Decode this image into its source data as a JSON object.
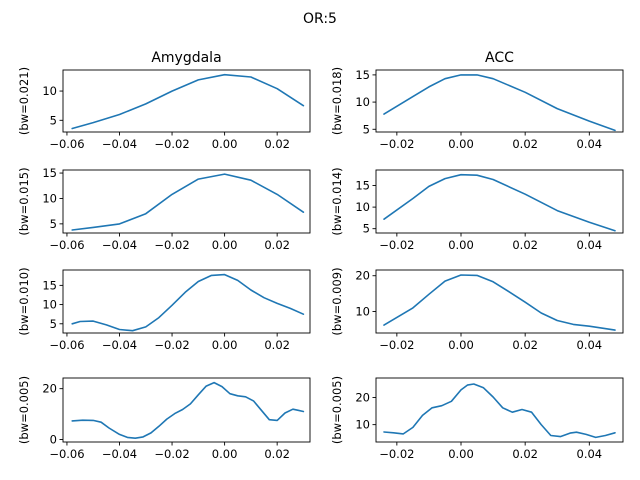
{
  "figure": {
    "suptitle": "OR:5"
  },
  "columns": [
    "Amygdala",
    "ACC"
  ],
  "colors": {
    "line": "#1f77b4"
  },
  "chart_data": [
    {
      "type": "line",
      "row": 0,
      "col": 0,
      "ylabel": "(bw=0.021)",
      "xlim": [
        -0.0615,
        0.0325
      ],
      "ylim": [
        3.0,
        13.6
      ],
      "xticks": [
        -0.06,
        -0.04,
        -0.02,
        0.0,
        0.02
      ],
      "xtick_labels": [
        "−0.06",
        "−0.04",
        "−0.02",
        "0.00",
        "0.02"
      ],
      "yticks": [
        5,
        10
      ],
      "ytick_labels": [
        "5",
        "10"
      ],
      "x": [
        -0.058,
        -0.05,
        -0.04,
        -0.03,
        -0.02,
        -0.01,
        0.0,
        0.01,
        0.02,
        0.03
      ],
      "y": [
        3.6,
        4.6,
        6.0,
        7.8,
        10.0,
        11.9,
        12.8,
        12.4,
        10.4,
        7.5
      ]
    },
    {
      "type": "line",
      "row": 0,
      "col": 1,
      "ylabel": "(bw=0.018)",
      "xlim": [
        -0.0265,
        0.0505
      ],
      "ylim": [
        4.5,
        15.9
      ],
      "xticks": [
        -0.02,
        0.0,
        0.02,
        0.04
      ],
      "xtick_labels": [
        "−0.02",
        "0.00",
        "0.02",
        "0.04"
      ],
      "yticks": [
        5,
        10,
        15
      ],
      "ytick_labels": [
        "5",
        "10",
        "15"
      ],
      "x": [
        -0.024,
        -0.015,
        -0.01,
        -0.005,
        0.0,
        0.005,
        0.01,
        0.02,
        0.03,
        0.04,
        0.048
      ],
      "y": [
        7.8,
        11.0,
        12.8,
        14.3,
        15.0,
        15.0,
        14.3,
        11.8,
        8.8,
        6.5,
        4.8
      ]
    },
    {
      "type": "line",
      "row": 1,
      "col": 0,
      "ylabel": "(bw=0.015)",
      "xlim": [
        -0.0615,
        0.0325
      ],
      "ylim": [
        3.2,
        15.6
      ],
      "xticks": [
        -0.06,
        -0.04,
        -0.02,
        0.0,
        0.02
      ],
      "xtick_labels": [
        "−0.06",
        "−0.04",
        "−0.02",
        "0.00",
        "0.02"
      ],
      "yticks": [
        5,
        10,
        15
      ],
      "ytick_labels": [
        "5",
        "10",
        "15"
      ],
      "x": [
        -0.058,
        -0.05,
        -0.04,
        -0.03,
        -0.02,
        -0.01,
        0.0,
        0.01,
        0.02,
        0.03
      ],
      "y": [
        3.8,
        4.3,
        5.0,
        7.0,
        10.8,
        13.8,
        14.8,
        13.6,
        10.8,
        7.3
      ]
    },
    {
      "type": "line",
      "row": 1,
      "col": 1,
      "ylabel": "(bw=0.014)",
      "xlim": [
        -0.0265,
        0.0505
      ],
      "ylim": [
        4.0,
        18.6
      ],
      "xticks": [
        -0.02,
        0.0,
        0.02,
        0.04
      ],
      "xtick_labels": [
        "−0.02",
        "0.00",
        "0.02",
        "0.04"
      ],
      "yticks": [
        5,
        10,
        15
      ],
      "ytick_labels": [
        "5",
        "10",
        "15"
      ],
      "x": [
        -0.024,
        -0.015,
        -0.01,
        -0.005,
        0.0,
        0.005,
        0.01,
        0.02,
        0.03,
        0.04,
        0.048
      ],
      "y": [
        7.2,
        12.0,
        14.8,
        16.6,
        17.5,
        17.4,
        16.4,
        13.0,
        9.2,
        6.5,
        4.5
      ]
    },
    {
      "type": "line",
      "row": 2,
      "col": 0,
      "ylabel": "(bw=0.010)",
      "xlim": [
        -0.0615,
        0.0325
      ],
      "ylim": [
        2.6,
        19.0
      ],
      "xticks": [
        -0.06,
        -0.04,
        -0.02,
        0.0,
        0.02
      ],
      "xtick_labels": [
        "−0.06",
        "−0.04",
        "−0.02",
        "0.00",
        "0.02"
      ],
      "yticks": [
        5,
        10,
        15
      ],
      "ytick_labels": [
        "5",
        "10",
        "15"
      ],
      "x": [
        -0.058,
        -0.055,
        -0.05,
        -0.045,
        -0.04,
        -0.035,
        -0.03,
        -0.025,
        -0.02,
        -0.015,
        -0.01,
        -0.005,
        0.0,
        0.005,
        0.01,
        0.015,
        0.02,
        0.025,
        0.03
      ],
      "y": [
        5.0,
        5.6,
        5.7,
        4.7,
        3.5,
        3.2,
        4.2,
        6.6,
        9.8,
        13.2,
        16.0,
        17.6,
        17.8,
        16.3,
        13.8,
        11.8,
        10.3,
        9.0,
        7.5
      ]
    },
    {
      "type": "line",
      "row": 2,
      "col": 1,
      "ylabel": "(bw=0.009)",
      "xlim": [
        -0.0265,
        0.0505
      ],
      "ylim": [
        4.0,
        21.6
      ],
      "xticks": [
        -0.02,
        0.0,
        0.02,
        0.04
      ],
      "xtick_labels": [
        "−0.02",
        "0.00",
        "0.02",
        "0.04"
      ],
      "yticks": [
        10,
        20
      ],
      "ytick_labels": [
        "10",
        "20"
      ],
      "x": [
        -0.024,
        -0.015,
        -0.01,
        -0.005,
        0.0,
        0.005,
        0.01,
        0.015,
        0.02,
        0.025,
        0.03,
        0.035,
        0.04,
        0.048
      ],
      "y": [
        6.2,
        11.0,
        14.8,
        18.5,
        20.2,
        20.1,
        18.3,
        15.5,
        12.6,
        9.6,
        7.5,
        6.4,
        5.9,
        4.8
      ]
    },
    {
      "type": "line",
      "row": 3,
      "col": 0,
      "ylabel": "(bw=0.005)",
      "xlim": [
        -0.0615,
        0.0325
      ],
      "ylim": [
        -1.0,
        24.2
      ],
      "xticks": [
        -0.06,
        -0.04,
        -0.02,
        0.0,
        0.02
      ],
      "xtick_labels": [
        "−0.06",
        "−0.04",
        "−0.02",
        "0.00",
        "0.02"
      ],
      "yticks": [
        0,
        20
      ],
      "ytick_labels": [
        "0",
        "20"
      ],
      "x": [
        -0.058,
        -0.054,
        -0.05,
        -0.047,
        -0.044,
        -0.04,
        -0.037,
        -0.034,
        -0.031,
        -0.028,
        -0.025,
        -0.022,
        -0.019,
        -0.016,
        -0.013,
        -0.01,
        -0.007,
        -0.004,
        -0.001,
        0.002,
        0.005,
        0.008,
        0.011,
        0.014,
        0.017,
        0.02,
        0.023,
        0.026,
        0.028,
        0.03
      ],
      "y": [
        7.3,
        7.6,
        7.5,
        6.8,
        4.5,
        2.0,
        0.8,
        0.5,
        1.0,
        2.6,
        5.2,
        8.0,
        10.2,
        11.8,
        14.0,
        17.6,
        21.0,
        22.4,
        20.8,
        18.0,
        17.2,
        16.8,
        15.2,
        11.5,
        7.8,
        7.5,
        10.4,
        11.9,
        11.5,
        11.0
      ]
    },
    {
      "type": "line",
      "row": 3,
      "col": 1,
      "ylabel": "(bw=0.005)",
      "xlim": [
        -0.0265,
        0.0505
      ],
      "ylim": [
        3.6,
        27.2
      ],
      "xticks": [
        -0.02,
        0.0,
        0.02,
        0.04
      ],
      "xtick_labels": [
        "−0.02",
        "0.00",
        "0.02",
        "0.04"
      ],
      "yticks": [
        10,
        20
      ],
      "ytick_labels": [
        "10",
        "20"
      ],
      "x": [
        -0.024,
        -0.021,
        -0.018,
        -0.015,
        -0.012,
        -0.009,
        -0.006,
        -0.003,
        0.0,
        0.002,
        0.004,
        0.007,
        0.01,
        0.013,
        0.016,
        0.019,
        0.022,
        0.025,
        0.028,
        0.031,
        0.034,
        0.036,
        0.039,
        0.042,
        0.045,
        0.048
      ],
      "y": [
        7.3,
        7.0,
        6.6,
        9.0,
        13.4,
        16.2,
        17.0,
        18.6,
        22.8,
        24.6,
        25.0,
        23.6,
        20.2,
        16.2,
        14.6,
        15.6,
        14.6,
        10.0,
        6.0,
        5.6,
        6.9,
        7.2,
        6.4,
        5.3,
        6.0,
        7.0
      ]
    }
  ]
}
